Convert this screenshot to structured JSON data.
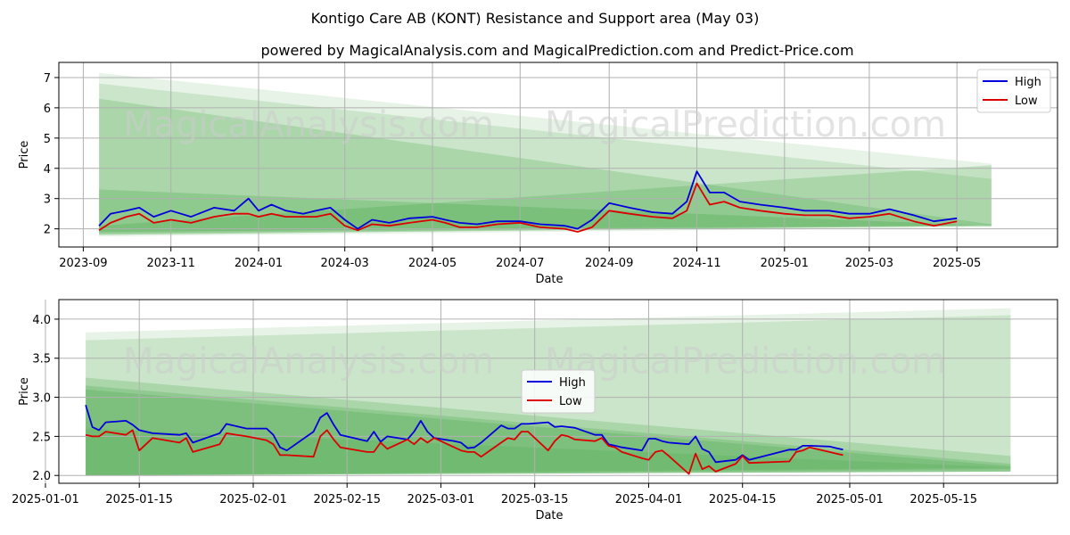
{
  "header": {
    "title": "Kontigo Care AB (KONT) Resistance and Support area (May 03)",
    "subtitle": "powered by MagicalAnalysis.com and MagicalPrediction.com and Predict-Price.com"
  },
  "watermarks": [
    "MagicalAnalysis.com",
    "MagicalPrediction.com"
  ],
  "colors": {
    "high": "#0000dd",
    "low": "#dd0000",
    "band": "#2e9b2e",
    "grid": "#b0b0b0"
  },
  "legend": {
    "high": "High",
    "low": "Low"
  },
  "chart_data": [
    {
      "type": "line",
      "xlabel": "Date",
      "ylabel": "Price",
      "xlim": [
        "2023-08-15",
        "2025-07-10"
      ],
      "ylim": [
        1.4,
        7.5
      ],
      "xticks": [
        "2023-09",
        "2023-11",
        "2024-01",
        "2024-03",
        "2024-05",
        "2024-07",
        "2024-09",
        "2024-11",
        "2025-01",
        "2025-03",
        "2025-05"
      ],
      "yticks": [
        2,
        3,
        4,
        5,
        6,
        7
      ],
      "grid": true,
      "legend_position": "upper right",
      "bands": [
        {
          "start": "2023-09-12",
          "end": "2025-05-25",
          "top": [
            7.15,
            4.15
          ],
          "bottom": [
            1.75,
            2.05
          ],
          "opacity": 0.12
        },
        {
          "start": "2023-09-12",
          "end": "2025-05-25",
          "top": [
            6.8,
            3.65
          ],
          "bottom": [
            1.8,
            2.1
          ],
          "opacity": 0.15
        },
        {
          "start": "2023-09-12",
          "end": "2025-05-25",
          "top": [
            6.3,
            2.15
          ],
          "bottom": [
            1.85,
            2.1
          ],
          "opacity": 0.2
        },
        {
          "start": "2023-09-12",
          "end": "2025-05-25",
          "top": [
            3.3,
            2.1
          ],
          "bottom": [
            1.9,
            2.12
          ],
          "opacity": 0.22
        },
        {
          "start": "2023-09-12",
          "end": "2025-05-25",
          "top": [
            2.1,
            4.1
          ],
          "bottom": [
            1.8,
            2.1
          ],
          "opacity": 0.2
        }
      ],
      "series": [
        {
          "name": "High",
          "x": [
            "2023-09-12",
            "2023-09-20",
            "2023-10-01",
            "2023-10-10",
            "2023-10-20",
            "2023-11-01",
            "2023-11-15",
            "2023-12-01",
            "2023-12-15",
            "2023-12-25",
            "2024-01-01",
            "2024-01-10",
            "2024-01-20",
            "2024-02-01",
            "2024-02-10",
            "2024-02-20",
            "2024-03-01",
            "2024-03-10",
            "2024-03-20",
            "2024-04-01",
            "2024-04-15",
            "2024-05-01",
            "2024-05-10",
            "2024-05-20",
            "2024-06-01",
            "2024-06-15",
            "2024-07-01",
            "2024-07-15",
            "2024-08-01",
            "2024-08-10",
            "2024-08-20",
            "2024-09-01",
            "2024-09-15",
            "2024-10-01",
            "2024-10-15",
            "2024-10-25",
            "2024-11-01",
            "2024-11-10",
            "2024-11-20",
            "2024-12-01",
            "2024-12-15",
            "2025-01-01",
            "2025-01-15",
            "2025-02-01",
            "2025-02-15",
            "2025-03-01",
            "2025-03-15",
            "2025-04-01",
            "2025-04-15",
            "2025-05-01"
          ],
          "values": [
            2.1,
            2.5,
            2.6,
            2.7,
            2.4,
            2.6,
            2.4,
            2.7,
            2.6,
            3.0,
            2.6,
            2.8,
            2.6,
            2.5,
            2.6,
            2.7,
            2.3,
            2.0,
            2.3,
            2.2,
            2.35,
            2.4,
            2.3,
            2.2,
            2.15,
            2.25,
            2.25,
            2.15,
            2.1,
            2.0,
            2.3,
            2.85,
            2.7,
            2.55,
            2.5,
            2.9,
            3.9,
            3.2,
            3.2,
            2.9,
            2.8,
            2.7,
            2.6,
            2.6,
            2.5,
            2.5,
            2.65,
            2.45,
            2.25,
            2.35
          ]
        },
        {
          "name": "Low",
          "x": [
            "2023-09-12",
            "2023-09-20",
            "2023-10-01",
            "2023-10-10",
            "2023-10-20",
            "2023-11-01",
            "2023-11-15",
            "2023-12-01",
            "2023-12-15",
            "2023-12-25",
            "2024-01-01",
            "2024-01-10",
            "2024-01-20",
            "2024-02-01",
            "2024-02-10",
            "2024-02-20",
            "2024-03-01",
            "2024-03-10",
            "2024-03-20",
            "2024-04-01",
            "2024-04-15",
            "2024-05-01",
            "2024-05-10",
            "2024-05-20",
            "2024-06-01",
            "2024-06-15",
            "2024-07-01",
            "2024-07-15",
            "2024-08-01",
            "2024-08-10",
            "2024-08-20",
            "2024-09-01",
            "2024-09-15",
            "2024-10-01",
            "2024-10-15",
            "2024-10-25",
            "2024-11-01",
            "2024-11-10",
            "2024-11-20",
            "2024-12-01",
            "2024-12-15",
            "2025-01-01",
            "2025-01-15",
            "2025-02-01",
            "2025-02-15",
            "2025-03-01",
            "2025-03-15",
            "2025-04-01",
            "2025-04-15",
            "2025-05-01"
          ],
          "values": [
            1.95,
            2.2,
            2.4,
            2.5,
            2.2,
            2.3,
            2.2,
            2.4,
            2.5,
            2.5,
            2.4,
            2.5,
            2.4,
            2.4,
            2.4,
            2.5,
            2.1,
            1.95,
            2.15,
            2.1,
            2.2,
            2.3,
            2.2,
            2.05,
            2.05,
            2.15,
            2.2,
            2.05,
            2.0,
            1.9,
            2.05,
            2.6,
            2.5,
            2.4,
            2.35,
            2.6,
            3.5,
            2.8,
            2.9,
            2.7,
            2.6,
            2.5,
            2.45,
            2.45,
            2.35,
            2.4,
            2.5,
            2.25,
            2.1,
            2.25
          ]
        }
      ]
    },
    {
      "type": "line",
      "xlabel": "Date",
      "ylabel": "Price",
      "xlim": [
        "2025-01-03",
        "2025-06-01"
      ],
      "ylim": [
        1.9,
        4.25
      ],
      "xticks": [
        "2025-01-01",
        "2025-01-15",
        "2025-02-01",
        "2025-02-15",
        "2025-03-01",
        "2025-03-15",
        "2025-04-01",
        "2025-04-15",
        "2025-05-01",
        "2025-05-15"
      ],
      "yticks": [
        "2.0",
        "2.5",
        "3.0",
        "3.5",
        "4.0"
      ],
      "grid": true,
      "legend_position": "center",
      "bands": [
        {
          "start": "2025-01-07",
          "end": "2025-05-25",
          "top": [
            3.83,
            4.14
          ],
          "bottom": [
            2.0,
            2.05
          ],
          "opacity": 0.12
        },
        {
          "start": "2025-01-07",
          "end": "2025-05-25",
          "top": [
            3.73,
            4.05
          ],
          "bottom": [
            2.0,
            2.05
          ],
          "opacity": 0.15
        },
        {
          "start": "2025-01-07",
          "end": "2025-05-25",
          "top": [
            3.25,
            2.25
          ],
          "bottom": [
            2.0,
            2.05
          ],
          "opacity": 0.2
        },
        {
          "start": "2025-01-07",
          "end": "2025-05-25",
          "top": [
            3.15,
            2.15
          ],
          "bottom": [
            2.0,
            2.05
          ],
          "opacity": 0.2
        },
        {
          "start": "2025-01-07",
          "end": "2025-05-25",
          "top": [
            3.1,
            2.12
          ],
          "bottom": [
            2.0,
            2.08
          ],
          "opacity": 0.2
        },
        {
          "start": "2025-01-07",
          "end": "2025-05-25",
          "top": [
            2.6,
            2.1
          ],
          "bottom": [
            2.0,
            2.1
          ],
          "opacity": 0.15
        }
      ],
      "series": [
        {
          "name": "High",
          "x": [
            "2025-01-07",
            "2025-01-08",
            "2025-01-09",
            "2025-01-10",
            "2025-01-13",
            "2025-01-14",
            "2025-01-15",
            "2025-01-17",
            "2025-01-21",
            "2025-01-22",
            "2025-01-23",
            "2025-01-27",
            "2025-01-28",
            "2025-01-31",
            "2025-02-03",
            "2025-02-04",
            "2025-02-05",
            "2025-02-06",
            "2025-02-10",
            "2025-02-11",
            "2025-02-12",
            "2025-02-13",
            "2025-02-14",
            "2025-02-18",
            "2025-02-19",
            "2025-02-20",
            "2025-02-21",
            "2025-02-24",
            "2025-02-25",
            "2025-02-26",
            "2025-02-27",
            "2025-02-28",
            "2025-03-03",
            "2025-03-04",
            "2025-03-05",
            "2025-03-06",
            "2025-03-07",
            "2025-03-10",
            "2025-03-11",
            "2025-03-12",
            "2025-03-13",
            "2025-03-14",
            "2025-03-17",
            "2025-03-18",
            "2025-03-19",
            "2025-03-20",
            "2025-03-21",
            "2025-03-24",
            "2025-03-25",
            "2025-03-26",
            "2025-03-27",
            "2025-03-28",
            "2025-03-31",
            "2025-04-01",
            "2025-04-02",
            "2025-04-03",
            "2025-04-04",
            "2025-04-07",
            "2025-04-08",
            "2025-04-09",
            "2025-04-10",
            "2025-04-11",
            "2025-04-14",
            "2025-04-15",
            "2025-04-16",
            "2025-04-22",
            "2025-04-23",
            "2025-04-24",
            "2025-04-25",
            "2025-04-28",
            "2025-04-29",
            "2025-04-30"
          ],
          "values": [
            2.9,
            2.62,
            2.58,
            2.68,
            2.7,
            2.65,
            2.58,
            2.54,
            2.52,
            2.54,
            2.42,
            2.54,
            2.66,
            2.6,
            2.6,
            2.52,
            2.36,
            2.32,
            2.56,
            2.74,
            2.8,
            2.65,
            2.52,
            2.44,
            2.56,
            2.43,
            2.5,
            2.46,
            2.56,
            2.7,
            2.56,
            2.48,
            2.44,
            2.42,
            2.35,
            2.36,
            2.42,
            2.64,
            2.6,
            2.6,
            2.66,
            2.66,
            2.68,
            2.62,
            2.63,
            2.62,
            2.61,
            2.52,
            2.52,
            2.4,
            2.38,
            2.36,
            2.32,
            2.47,
            2.47,
            2.44,
            2.42,
            2.4,
            2.5,
            2.34,
            2.3,
            2.17,
            2.2,
            2.26,
            2.2,
            2.33,
            2.33,
            2.38,
            2.38,
            2.37,
            2.35,
            2.33
          ]
        },
        {
          "name": "Low",
          "x": [
            "2025-01-07",
            "2025-01-08",
            "2025-01-09",
            "2025-01-10",
            "2025-01-13",
            "2025-01-14",
            "2025-01-15",
            "2025-01-17",
            "2025-01-21",
            "2025-01-22",
            "2025-01-23",
            "2025-01-27",
            "2025-01-28",
            "2025-01-31",
            "2025-02-03",
            "2025-02-04",
            "2025-02-05",
            "2025-02-06",
            "2025-02-10",
            "2025-02-11",
            "2025-02-12",
            "2025-02-13",
            "2025-02-14",
            "2025-02-18",
            "2025-02-19",
            "2025-02-20",
            "2025-02-21",
            "2025-02-24",
            "2025-02-25",
            "2025-02-26",
            "2025-02-27",
            "2025-02-28",
            "2025-03-03",
            "2025-03-04",
            "2025-03-05",
            "2025-03-06",
            "2025-03-07",
            "2025-03-10",
            "2025-03-11",
            "2025-03-12",
            "2025-03-13",
            "2025-03-14",
            "2025-03-17",
            "2025-03-18",
            "2025-03-19",
            "2025-03-20",
            "2025-03-21",
            "2025-03-24",
            "2025-03-25",
            "2025-03-26",
            "2025-03-27",
            "2025-03-28",
            "2025-03-31",
            "2025-04-01",
            "2025-04-02",
            "2025-04-03",
            "2025-04-04",
            "2025-04-07",
            "2025-04-08",
            "2025-04-09",
            "2025-04-10",
            "2025-04-11",
            "2025-04-14",
            "2025-04-15",
            "2025-04-16",
            "2025-04-22",
            "2025-04-23",
            "2025-04-24",
            "2025-04-25",
            "2025-04-28",
            "2025-04-29",
            "2025-04-30"
          ],
          "values": [
            2.52,
            2.5,
            2.5,
            2.56,
            2.52,
            2.58,
            2.32,
            2.48,
            2.42,
            2.48,
            2.3,
            2.4,
            2.54,
            2.5,
            2.45,
            2.4,
            2.26,
            2.26,
            2.24,
            2.5,
            2.58,
            2.46,
            2.36,
            2.3,
            2.3,
            2.42,
            2.34,
            2.46,
            2.4,
            2.48,
            2.42,
            2.48,
            2.36,
            2.32,
            2.3,
            2.3,
            2.24,
            2.42,
            2.48,
            2.46,
            2.56,
            2.56,
            2.32,
            2.44,
            2.52,
            2.5,
            2.46,
            2.44,
            2.48,
            2.38,
            2.36,
            2.3,
            2.22,
            2.2,
            2.3,
            2.32,
            2.25,
            2.02,
            2.28,
            2.08,
            2.12,
            2.05,
            2.15,
            2.25,
            2.16,
            2.18,
            2.3,
            2.32,
            2.36,
            2.3,
            2.28,
            2.26
          ]
        }
      ]
    }
  ]
}
